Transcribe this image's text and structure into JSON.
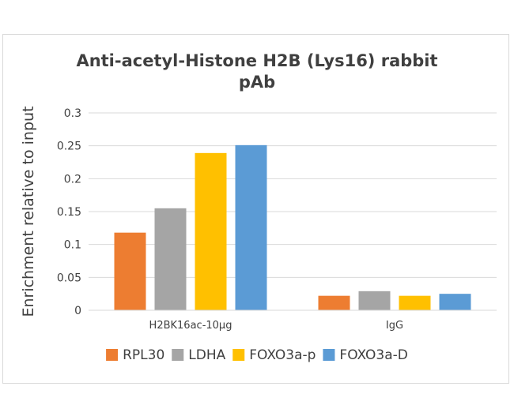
{
  "chart_data": {
    "type": "bar",
    "title_lines": [
      "Anti-acetyl-Histone H2B (Lys16) rabbit",
      "pAb"
    ],
    "xlabel": "",
    "ylabel": "Enrichment relative to input",
    "ylim": [
      0,
      0.3
    ],
    "yticks": [
      "0",
      "0.05",
      "0.1",
      "0.15",
      "0.2",
      "0.25",
      "0.3"
    ],
    "ytick_values": [
      0,
      0.05,
      0.1,
      0.15,
      0.2,
      0.25,
      0.3
    ],
    "grid": true,
    "legend_position": "bottom",
    "categories": [
      "H2BK16ac-10µg",
      "IgG"
    ],
    "series": [
      {
        "name": "RPL30",
        "color": "#ED7D31",
        "values": [
          0.118,
          0.022
        ]
      },
      {
        "name": "LDHA",
        "color": "#A5A5A5",
        "values": [
          0.155,
          0.029
        ]
      },
      {
        "name": "FOXO3a-p",
        "color": "#FFC000",
        "values": [
          0.239,
          0.022
        ]
      },
      {
        "name": "FOXO3a-D",
        "color": "#5B9BD5",
        "values": [
          0.251,
          0.025
        ]
      }
    ]
  }
}
